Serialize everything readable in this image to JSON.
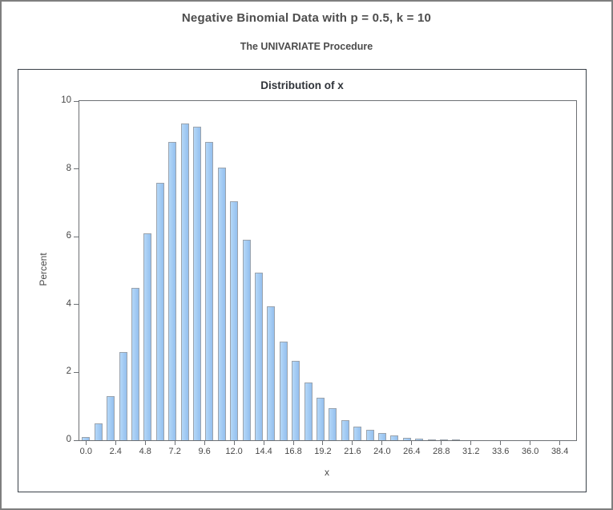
{
  "page": {
    "title": "Negative Binomial Data with p = 0.5, k = 10",
    "subtitle": "The UNIVARIATE Procedure"
  },
  "chart_data": {
    "type": "bar",
    "title": "Distribution of x",
    "xlabel": "x",
    "ylabel": "Percent",
    "x": [
      0,
      1,
      2,
      3,
      4,
      5,
      6,
      7,
      8,
      9,
      10,
      11,
      12,
      13,
      14,
      15,
      16,
      17,
      18,
      19,
      20,
      21,
      22,
      23,
      24,
      25,
      26,
      27,
      28,
      29,
      30
    ],
    "values": [
      0.1,
      0.5,
      1.3,
      2.6,
      4.5,
      6.1,
      7.6,
      8.8,
      9.35,
      9.25,
      8.8,
      8.05,
      7.05,
      5.9,
      4.95,
      3.95,
      2.9,
      2.35,
      1.7,
      1.25,
      0.95,
      0.6,
      0.4,
      0.3,
      0.22,
      0.15,
      0.08,
      0.05,
      0.03,
      0.02,
      0.01
    ],
    "x_tick_labels": [
      "0.0",
      "2.4",
      "4.8",
      "7.2",
      "9.6",
      "12.0",
      "14.4",
      "16.8",
      "19.2",
      "21.6",
      "24.0",
      "26.4",
      "28.8",
      "31.2",
      "33.6",
      "36.0",
      "38.4"
    ],
    "x_tick_step": 2.4,
    "y_ticks": [
      "0",
      "2",
      "4",
      "6",
      "8",
      "10"
    ],
    "y_tick_values": [
      0,
      2,
      4,
      6,
      8,
      10
    ],
    "ylim": [
      0,
      10
    ],
    "xlim": [
      -0.55,
      39.7
    ],
    "grid": false,
    "legend": false,
    "bar_fill": "#a5cdf4",
    "bar_border": "#9aa3ad"
  },
  "colors": {
    "title_text": "#4d4d4d",
    "axis_text": "#474747",
    "graph_frame": "#3a4149",
    "plot_frame": "#6d7074",
    "outer_border": "#7f7f7f",
    "background": "#ffffff"
  }
}
